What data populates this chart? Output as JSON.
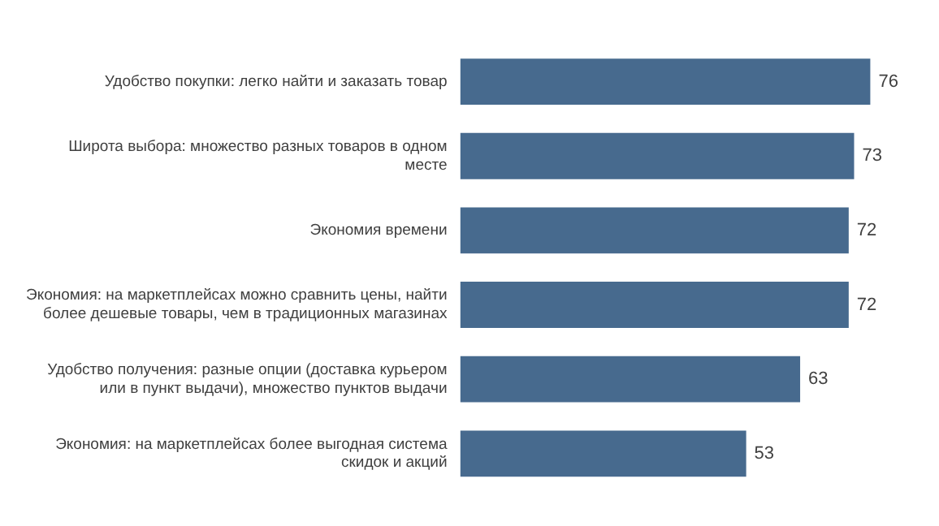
{
  "chart_data": {
    "type": "bar",
    "orientation": "horizontal",
    "data_labels": true,
    "grid": false,
    "legend": false,
    "categories": [
      "Удобство покупки: легко найти и заказать товар",
      "Широта выбора: множество разных товаров в одном месте",
      "Экономия времени",
      "Экономия: на маркетплейсах можно сравнить цены, найти более дешевые товары, чем в традиционных магазинах",
      "Удобство получения: разные опции (доставка курьером или в пункт выдачи), множество пунктов выдачи",
      "Экономия: на маркетплейсах более выгодная система скидок и акций"
    ],
    "values": [
      76,
      73,
      72,
      72,
      63,
      53
    ],
    "color": "#476a8e"
  }
}
